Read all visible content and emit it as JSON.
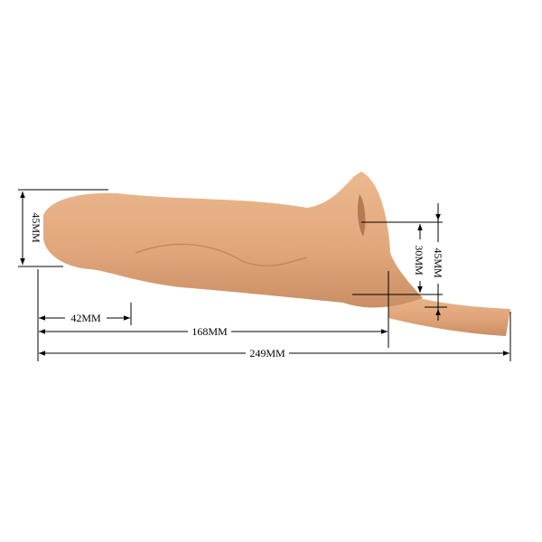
{
  "colors": {
    "product_main": "#e3ab80",
    "product_shadow": "#c98e63",
    "line": "#000000",
    "background": "#ffffff"
  },
  "dimensions": {
    "head_height": "45MM",
    "head_length": "42MM",
    "insertable_length": "168MM",
    "total_length": "249MM",
    "opening_height": "30MM",
    "base_height": "45MM"
  }
}
